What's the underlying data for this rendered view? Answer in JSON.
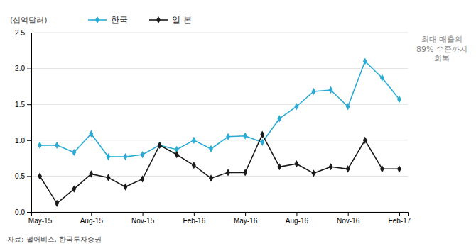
{
  "chart_data": {
    "type": "line",
    "y_label": "(십억달러)",
    "annotation": "최대 매출의\n89% 수준까지\n회복",
    "source": "자료: 펄어비스, 한국투자증권",
    "categories": [
      "May-15",
      null,
      null,
      "Aug-15",
      null,
      null,
      "Nov-15",
      null,
      null,
      "Feb-16",
      null,
      null,
      "May-16",
      null,
      null,
      "Aug-16",
      null,
      null,
      "Nov-16",
      null,
      null,
      "Feb-17"
    ],
    "series": [
      {
        "name": "한국",
        "color": "#29ABD4",
        "marker": "diamond",
        "values": [
          0.93,
          0.93,
          0.83,
          1.09,
          0.77,
          0.77,
          0.8,
          0.93,
          0.87,
          1.0,
          0.88,
          1.05,
          1.06,
          0.97,
          1.3,
          1.47,
          1.68,
          1.7,
          1.47,
          2.1,
          1.87,
          1.57
        ]
      },
      {
        "name": "일 본",
        "color": "#1a1a1a",
        "marker": "diamond",
        "values": [
          0.5,
          0.12,
          0.32,
          0.53,
          0.48,
          0.35,
          0.46,
          0.93,
          0.8,
          0.65,
          0.47,
          0.55,
          0.55,
          1.08,
          0.63,
          0.67,
          0.54,
          0.63,
          0.6,
          1.0,
          0.6,
          0.6
        ]
      }
    ],
    "ylim": [
      0.0,
      2.5
    ],
    "yticks": [
      {
        "value": 0.0,
        "label": "0.0"
      },
      0.5,
      {
        "value": 1.0,
        "label": "1.0"
      },
      1.5,
      {
        "value": 2.0,
        "label": "2.0"
      },
      2.5
    ],
    "grid": true,
    "legend": "top-left"
  }
}
